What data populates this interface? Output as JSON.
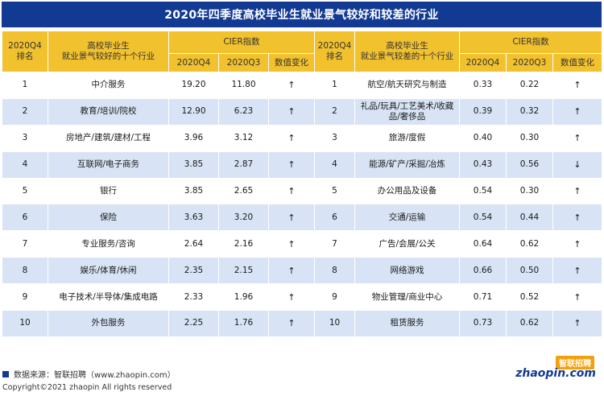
{
  "title": "2020年四季度高校毕业生就业景气较好和较差的行业",
  "header": {
    "rank_left": "2020Q4\n排名",
    "industry_left": "高校毕业生\n就业景气较好的十个行业",
    "cier_left": "CIER指数",
    "rank_right": "2020Q4\n排名",
    "industry_right": "高校毕业生\n就业景气较差的十个行业",
    "cier_right": "CIER指数",
    "q4": "2020Q4",
    "q3": "2020Q3",
    "change": "数值变化"
  },
  "rows": [
    {
      "rank_l": "1",
      "ind_l": "中介服务",
      "q4_l": "19.20",
      "q3_l": "11.80",
      "chg_l": "↑",
      "rank_r": "1",
      "ind_r": "航空/航天研究与制造",
      "q4_r": "0.33",
      "q3_r": "0.22",
      "chg_r": "↑"
    },
    {
      "rank_l": "2",
      "ind_l": "教育/培训/院校",
      "q4_l": "12.90",
      "q3_l": "6.23",
      "chg_l": "↑",
      "rank_r": "2",
      "ind_r": "礼品/玩具/工艺美术/收藏品/奢侈品",
      "q4_r": "0.39",
      "q3_r": "0.32",
      "chg_r": "↑"
    },
    {
      "rank_l": "3",
      "ind_l": "房地产/建筑/建材/工程",
      "q4_l": "3.96",
      "q3_l": "3.12",
      "chg_l": "↑",
      "rank_r": "3",
      "ind_r": "旅游/度假",
      "q4_r": "0.40",
      "q3_r": "0.30",
      "chg_r": "↑"
    },
    {
      "rank_l": "4",
      "ind_l": "互联网/电子商务",
      "q4_l": "3.85",
      "q3_l": "2.87",
      "chg_l": "↑",
      "rank_r": "4",
      "ind_r": "能源/矿产/采掘/冶炼",
      "q4_r": "0.43",
      "q3_r": "0.56",
      "chg_r": "↓"
    },
    {
      "rank_l": "5",
      "ind_l": "银行",
      "q4_l": "3.85",
      "q3_l": "2.65",
      "chg_l": "↑",
      "rank_r": "5",
      "ind_r": "办公用品及设备",
      "q4_r": "0.54",
      "q3_r": "0.30",
      "chg_r": "↑"
    },
    {
      "rank_l": "6",
      "ind_l": "保险",
      "q4_l": "3.63",
      "q3_l": "3.20",
      "chg_l": "↑",
      "rank_r": "6",
      "ind_r": "交通/运输",
      "q4_r": "0.54",
      "q3_r": "0.44",
      "chg_r": "↑"
    },
    {
      "rank_l": "7",
      "ind_l": "专业服务/咨询",
      "q4_l": "2.64",
      "q3_l": "2.16",
      "chg_l": "↑",
      "rank_r": "7",
      "ind_r": "广告/会展/公关",
      "q4_r": "0.64",
      "q3_r": "0.62",
      "chg_r": "↑"
    },
    {
      "rank_l": "8",
      "ind_l": "娱乐/体育/休闲",
      "q4_l": "2.35",
      "q3_l": "2.15",
      "chg_l": "↑",
      "rank_r": "8",
      "ind_r": "网络游戏",
      "q4_r": "0.66",
      "q3_r": "0.50",
      "chg_r": "↑"
    },
    {
      "rank_l": "9",
      "ind_l": "电子技术/半导体/集成电路",
      "q4_l": "2.33",
      "q3_l": "1.96",
      "chg_l": "↑",
      "rank_r": "9",
      "ind_r": "物业管理/商业中心",
      "q4_r": "0.71",
      "q3_r": "0.52",
      "chg_r": "↑"
    },
    {
      "rank_l": "10",
      "ind_l": "外包服务",
      "q4_l": "2.25",
      "q3_l": "1.76",
      "chg_l": "↑",
      "rank_r": "10",
      "ind_r": "租赁服务",
      "q4_r": "0.73",
      "q3_r": "0.62",
      "chg_r": "↑"
    }
  ],
  "footer": {
    "source": "数据来源：智联招聘（www.zhaopin.com）",
    "copyright": "Copyright©2021 zhaopin All rights reserved"
  },
  "logo": {
    "cn": "智联招聘",
    "en": "zhaopin.com"
  },
  "colors": {
    "title_bg": "#123a92",
    "header_bg": "#f2c12e",
    "stripe": "#d8e4f5"
  }
}
